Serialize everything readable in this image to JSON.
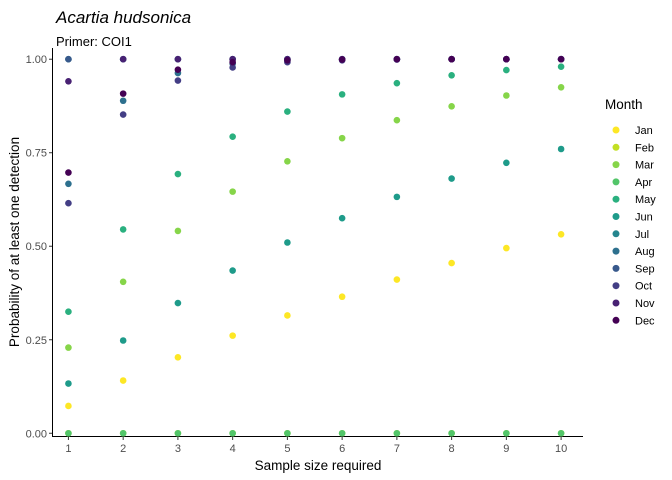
{
  "chart_data": {
    "type": "scatter",
    "title": "Acartia hudsonica",
    "subtitle": "Primer: COI1",
    "xlabel": "Sample size required",
    "ylabel": "Probability of at least one detection",
    "xlim": [
      0.7,
      10.4
    ],
    "ylim": [
      -0.01,
      1.03
    ],
    "x_ticks": [
      1,
      2,
      3,
      4,
      5,
      6,
      7,
      8,
      9,
      10
    ],
    "y_ticks": [
      0,
      0.25,
      0.5,
      0.75,
      1
    ],
    "y_tick_labels": [
      "0.00",
      "0.25",
      "0.50",
      "0.75",
      "1.00"
    ],
    "grid": false,
    "legend_title": "Month",
    "legend_position": "right",
    "x": [
      1,
      2,
      3,
      4,
      5,
      6,
      7,
      8,
      9,
      10
    ],
    "series": [
      {
        "name": "Jan",
        "color": "#FDE725",
        "values": [
          0.073,
          0.141,
          0.203,
          0.261,
          0.315,
          0.365,
          0.411,
          0.455,
          0.495,
          0.532
        ]
      },
      {
        "name": "Feb",
        "color": "#C2DF23",
        "values": [
          0,
          0,
          0,
          0,
          0,
          0,
          0,
          0,
          0,
          0
        ]
      },
      {
        "name": "Mar",
        "color": "#86D549",
        "values": [
          0.229,
          0.405,
          0.541,
          0.646,
          0.727,
          0.789,
          0.837,
          0.874,
          0.903,
          0.925
        ]
      },
      {
        "name": "Apr",
        "color": "#52C569",
        "values": [
          0,
          0,
          0,
          0,
          0,
          0,
          0,
          0,
          0,
          0
        ]
      },
      {
        "name": "May",
        "color": "#2AB07F",
        "values": [
          0.325,
          0.545,
          0.693,
          0.793,
          0.86,
          0.906,
          0.936,
          0.957,
          0.971,
          0.98
        ]
      },
      {
        "name": "Jun",
        "color": "#1E9B8A",
        "values": [
          0.133,
          0.248,
          0.348,
          0.435,
          0.51,
          0.575,
          0.632,
          0.681,
          0.723,
          0.76
        ]
      },
      {
        "name": "Jul",
        "color": "#25858E",
        "values": [
          1,
          1,
          1,
          1,
          1,
          1,
          1,
          1,
          1,
          1
        ]
      },
      {
        "name": "Aug",
        "color": "#2D708E",
        "values": [
          0.667,
          0.889,
          0.963,
          0.988,
          0.996,
          0.999,
          1,
          1,
          1,
          1
        ]
      },
      {
        "name": "Sep",
        "color": "#38598C",
        "values": [
          1,
          1,
          1,
          1,
          1,
          1,
          1,
          1,
          1,
          1
        ]
      },
      {
        "name": "Oct",
        "color": "#433E85",
        "values": [
          0.615,
          0.852,
          0.943,
          0.978,
          0.992,
          0.997,
          0.999,
          1,
          1,
          1
        ]
      },
      {
        "name": "Nov",
        "color": "#482173",
        "values": [
          0.941,
          1,
          1,
          1,
          1,
          1,
          1,
          1,
          1,
          1
        ]
      },
      {
        "name": "Dec",
        "color": "#440154",
        "values": [
          0.697,
          0.908,
          0.972,
          0.992,
          0.997,
          0.999,
          1,
          1,
          1,
          1
        ]
      }
    ]
  }
}
